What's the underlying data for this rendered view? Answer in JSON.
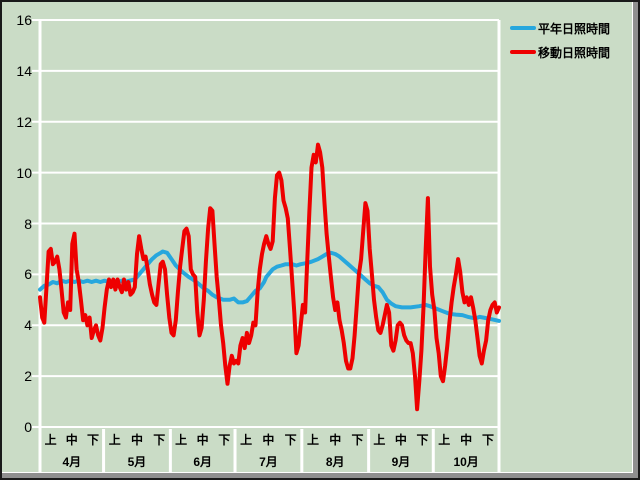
{
  "colors": {
    "background": "#cadcc6",
    "grid": "#ffffff",
    "normal_line": "#27a7dd",
    "moving_line": "#ee0000",
    "text": "#000000",
    "frame_dark": "#1a1a1a",
    "frame_gray": "#8f8f8f"
  },
  "legend": {
    "items": [
      {
        "label": "平年日照時間",
        "color": "#27a7dd"
      },
      {
        "label": "移動日照時間",
        "color": "#ee0000"
      }
    ]
  },
  "axis": {
    "y": {
      "min": 0,
      "max": 16,
      "step": 2,
      "tick_labels": [
        "0",
        "2",
        "4",
        "6",
        "8",
        "10",
        "12",
        "14",
        "16"
      ]
    },
    "x": {
      "period_labels": [
        "上",
        "中",
        "下"
      ],
      "months": [
        {
          "label": "4月",
          "days": 30
        },
        {
          "label": "5月",
          "days": 31
        },
        {
          "label": "6月",
          "days": 30
        },
        {
          "label": "7月",
          "days": 31
        },
        {
          "label": "8月",
          "days": 31
        },
        {
          "label": "9月",
          "days": 30
        },
        {
          "label": "10月",
          "days": 31
        }
      ]
    }
  },
  "chart_data": {
    "type": "line",
    "title": "",
    "xlabel": "",
    "ylabel": "",
    "ylim": [
      0,
      16
    ],
    "grid": "horizontal-white",
    "legend_position": "top-right",
    "x_unit": "day, Apr 1 – Oct 31 (214 days)",
    "series": [
      {
        "name": "平年日照時間",
        "color": "#27a7dd",
        "style": "smooth climatological normal, control points [day,value]",
        "points": [
          [
            0,
            5.4
          ],
          [
            2,
            5.55
          ],
          [
            4,
            5.6
          ],
          [
            6,
            5.7
          ],
          [
            8,
            5.65
          ],
          [
            10,
            5.75
          ],
          [
            12,
            5.7
          ],
          [
            14,
            5.75
          ],
          [
            16,
            5.7
          ],
          [
            18,
            5.75
          ],
          [
            20,
            5.7
          ],
          [
            22,
            5.75
          ],
          [
            24,
            5.7
          ],
          [
            26,
            5.75
          ],
          [
            28,
            5.7
          ],
          [
            30,
            5.75
          ],
          [
            32,
            5.7
          ],
          [
            34,
            5.75
          ],
          [
            36,
            5.7
          ],
          [
            38,
            5.75
          ],
          [
            40,
            5.72
          ],
          [
            42,
            5.76
          ],
          [
            44,
            5.8
          ],
          [
            46,
            6.0
          ],
          [
            48,
            6.2
          ],
          [
            50,
            6.4
          ],
          [
            52,
            6.6
          ],
          [
            54,
            6.75
          ],
          [
            56,
            6.85
          ],
          [
            57,
            6.9
          ],
          [
            59,
            6.85
          ],
          [
            61,
            6.6
          ],
          [
            63,
            6.35
          ],
          [
            66,
            6.1
          ],
          [
            69,
            5.9
          ],
          [
            71,
            5.8
          ],
          [
            74,
            5.6
          ],
          [
            76,
            5.45
          ],
          [
            78,
            5.35
          ],
          [
            80,
            5.2
          ],
          [
            82,
            5.1
          ],
          [
            85,
            5.0
          ],
          [
            88,
            5.0
          ],
          [
            90,
            5.05
          ],
          [
            92,
            4.9
          ],
          [
            94,
            4.9
          ],
          [
            96,
            4.95
          ],
          [
            98,
            5.15
          ],
          [
            100,
            5.35
          ],
          [
            102,
            5.45
          ],
          [
            104,
            5.7
          ],
          [
            105,
            5.9
          ],
          [
            107,
            6.1
          ],
          [
            108,
            6.2
          ],
          [
            110,
            6.3
          ],
          [
            112,
            6.35
          ],
          [
            114,
            6.4
          ],
          [
            117,
            6.4
          ],
          [
            119,
            6.35
          ],
          [
            121,
            6.4
          ],
          [
            124,
            6.45
          ],
          [
            126,
            6.5
          ],
          [
            129,
            6.6
          ],
          [
            131,
            6.7
          ],
          [
            133,
            6.8
          ],
          [
            135,
            6.85
          ],
          [
            137,
            6.8
          ],
          [
            139,
            6.7
          ],
          [
            141,
            6.55
          ],
          [
            143,
            6.4
          ],
          [
            145,
            6.25
          ],
          [
            147,
            6.1
          ],
          [
            149,
            5.95
          ],
          [
            151,
            5.8
          ],
          [
            153,
            5.65
          ],
          [
            155,
            5.55
          ],
          [
            157,
            5.5
          ],
          [
            159,
            5.3
          ],
          [
            161,
            5.0
          ],
          [
            163,
            4.85
          ],
          [
            165,
            4.75
          ],
          [
            168,
            4.7
          ],
          [
            172,
            4.7
          ],
          [
            176,
            4.75
          ],
          [
            179,
            4.8
          ],
          [
            181,
            4.75
          ],
          [
            184,
            4.65
          ],
          [
            187,
            4.55
          ],
          [
            190,
            4.45
          ],
          [
            193,
            4.42
          ],
          [
            196,
            4.4
          ],
          [
            199,
            4.32
          ],
          [
            202,
            4.27
          ],
          [
            204,
            4.33
          ],
          [
            207,
            4.28
          ],
          [
            210,
            4.23
          ],
          [
            213,
            4.17
          ]
        ]
      },
      {
        "name": "移動日照時間",
        "color": "#ee0000",
        "style": "daily values, one per day from Apr 1",
        "values": [
          5.1,
          4.3,
          4.1,
          5.5,
          6.9,
          7.0,
          6.4,
          6.5,
          6.7,
          6.2,
          5.4,
          4.5,
          4.3,
          4.9,
          4.6,
          7.2,
          7.6,
          6.2,
          5.7,
          5.0,
          4.2,
          4.4,
          4.0,
          4.3,
          3.5,
          3.8,
          4.0,
          3.6,
          3.4,
          3.9,
          4.7,
          5.4,
          5.8,
          5.5,
          5.8,
          5.4,
          5.8,
          5.5,
          5.3,
          5.8,
          5.4,
          5.7,
          5.2,
          5.3,
          5.5,
          6.8,
          7.5,
          7.0,
          6.6,
          6.7,
          6.2,
          5.6,
          5.2,
          4.9,
          4.8,
          5.6,
          6.4,
          6.5,
          6.2,
          5.2,
          4.3,
          3.7,
          3.6,
          4.2,
          5.3,
          6.3,
          7.0,
          7.7,
          7.8,
          7.5,
          6.2,
          6.0,
          5.9,
          4.5,
          3.6,
          3.9,
          5.0,
          6.5,
          7.8,
          8.6,
          8.5,
          7.2,
          5.9,
          5.0,
          4.0,
          3.3,
          2.4,
          1.7,
          2.4,
          2.8,
          2.5,
          2.6,
          2.5,
          3.2,
          3.5,
          3.1,
          3.7,
          3.3,
          3.6,
          4.1,
          4.0,
          5.3,
          6.2,
          6.8,
          7.2,
          7.5,
          7.2,
          7.0,
          7.3,
          9.0,
          9.9,
          10.0,
          9.7,
          8.9,
          8.6,
          8.2,
          7.0,
          5.8,
          4.5,
          2.9,
          3.2,
          4.0,
          4.8,
          4.5,
          6.5,
          8.5,
          10.2,
          10.7,
          10.4,
          11.1,
          10.8,
          10.2,
          8.8,
          7.6,
          6.7,
          5.9,
          5.1,
          4.6,
          4.9,
          4.2,
          3.8,
          3.3,
          2.6,
          2.3,
          2.3,
          2.7,
          3.6,
          4.8,
          6.0,
          6.6,
          7.7,
          8.8,
          8.5,
          7.0,
          6.0,
          5.0,
          4.3,
          3.8,
          3.7,
          4.0,
          4.4,
          4.8,
          4.5,
          3.2,
          3.0,
          3.4,
          4.0,
          4.1,
          4.0,
          3.6,
          3.4,
          3.3,
          3.3,
          2.9,
          2.0,
          0.7,
          1.8,
          3.0,
          4.8,
          7.0,
          9.0,
          6.3,
          5.2,
          4.6,
          3.5,
          2.9,
          2.0,
          1.8,
          2.4,
          3.2,
          4.1,
          4.9,
          5.5,
          6.0,
          6.6,
          6.1,
          5.3,
          4.9,
          5.1,
          4.8,
          5.1,
          4.7,
          4.2,
          3.5,
          2.8,
          2.5,
          3.0,
          3.4,
          4.2,
          4.6,
          4.8,
          4.9,
          4.5,
          4.7
        ]
      }
    ]
  }
}
